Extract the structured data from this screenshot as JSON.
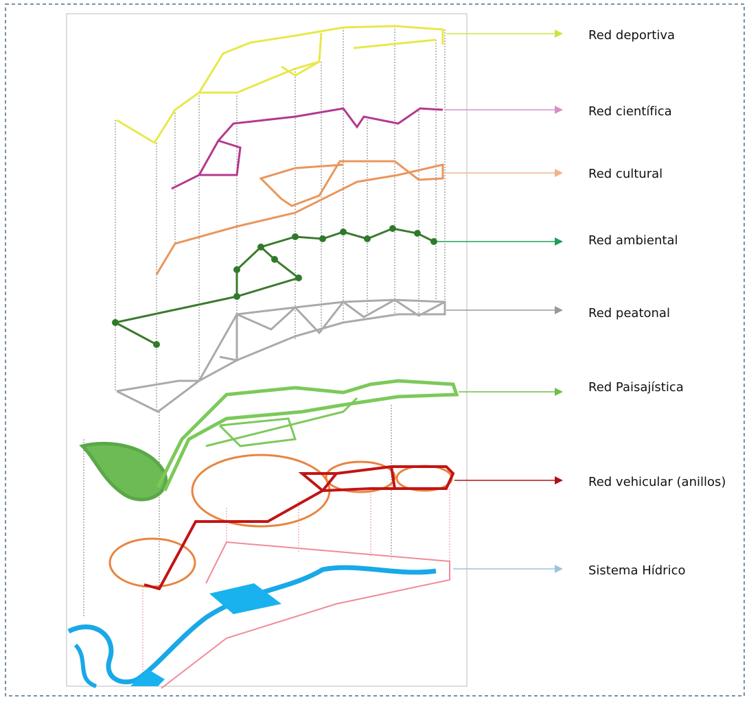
{
  "layers": [
    {
      "label": "Red deportiva"
    },
    {
      "label": "Red científica"
    },
    {
      "label": "Red cultural"
    },
    {
      "label": "Red ambiental"
    },
    {
      "label": "Red peatonal"
    },
    {
      "label": "Red Paisajística"
    },
    {
      "label": "Red vehicular (anillos)"
    },
    {
      "label": "Sistema Hídrico"
    }
  ]
}
